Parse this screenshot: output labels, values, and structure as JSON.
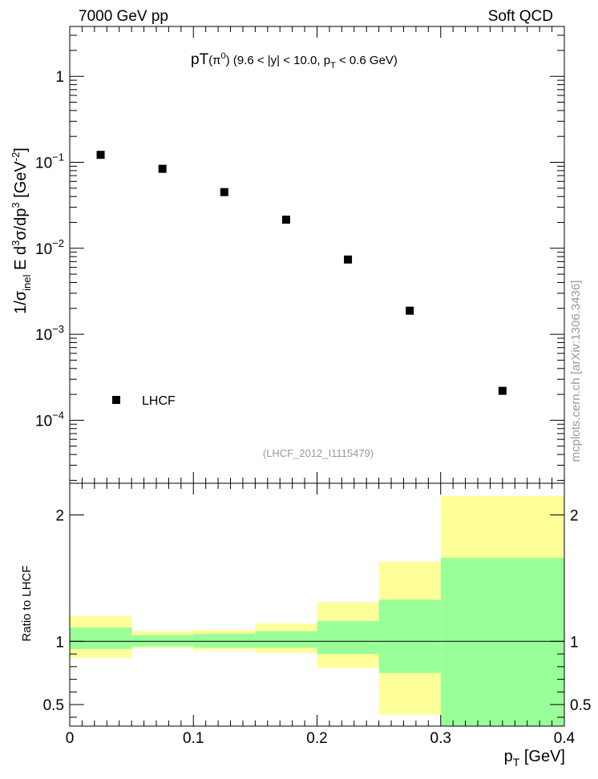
{
  "header": {
    "left": "7000 GeV pp",
    "right": "Soft QCD"
  },
  "plot_title": {
    "main": "pT",
    "particle": "(π",
    "particle_sup": "0",
    "particle_close": ")",
    "cuts_a": " (9.6 < |y| < 10.0, p",
    "cuts_sub": "T",
    "cuts_b": " < 0.6 GeV)"
  },
  "analysis_label": "(LHCF_2012_I1115479)",
  "side_label": "mcplots.cern.ch [arXiv:1306.3436]",
  "main_ylabel": {
    "a": "1/σ",
    "a_sub": "inel",
    "b": " E d",
    "b_sup": "3",
    "c": "σ/dp",
    "c_sup": "3",
    "d": " [GeV",
    "d_sup": "-2",
    "e": "]"
  },
  "ratio_ylabel": "Ratio to LHCF",
  "xlabel": {
    "main": "p",
    "sub": "T",
    "unit": " [GeV]"
  },
  "colors": {
    "marker": "#000000",
    "band_inner": "#99ff99",
    "band_outer": "#ffff99",
    "ref_line": "#000000",
    "grey_text": "#999999"
  },
  "chart_data": [
    {
      "type": "scatter",
      "panel": "main",
      "xlim": [
        0,
        0.4
      ],
      "ylim": [
        1.85e-05,
        3.8
      ],
      "yscale": "log",
      "y_ticks": [
        {
          "value": 1,
          "base": "1",
          "exp": ""
        },
        {
          "value": 0.1,
          "base": "10",
          "exp": "−1"
        },
        {
          "value": 0.01,
          "base": "10",
          "exp": "−2"
        },
        {
          "value": 0.001,
          "base": "10",
          "exp": "−3"
        },
        {
          "value": 0.0001,
          "base": "10",
          "exp": "−4"
        }
      ],
      "legend": {
        "position": "bottom-left",
        "entries": [
          "LHCF"
        ]
      },
      "series": [
        {
          "name": "LHCF",
          "marker": "square",
          "x": [
            0.025,
            0.075,
            0.125,
            0.175,
            0.225,
            0.275,
            0.35
          ],
          "y": [
            0.122,
            0.084,
            0.045,
            0.0215,
            0.0074,
            0.00188,
            0.00022
          ]
        }
      ]
    },
    {
      "type": "area",
      "panel": "ratio",
      "ylabel": "Ratio to LHCF",
      "xlim": [
        0,
        0.4
      ],
      "ylim": [
        0.33,
        2.25
      ],
      "y_ticks": [
        "0.5",
        "1",
        "2"
      ],
      "x_ticks": [
        "0",
        "0.1",
        "0.2",
        "0.3",
        "0.4"
      ],
      "reference_line": 1,
      "bins": [
        {
          "x_low": 0.0,
          "x_high": 0.05,
          "inner": [
            0.94,
            1.11
          ],
          "outer": [
            0.87,
            1.2
          ]
        },
        {
          "x_low": 0.05,
          "x_high": 0.1,
          "inner": [
            0.96,
            1.05
          ],
          "outer": [
            0.95,
            1.08
          ]
        },
        {
          "x_low": 0.1,
          "x_high": 0.15,
          "inner": [
            0.95,
            1.06
          ],
          "outer": [
            0.93,
            1.09
          ]
        },
        {
          "x_low": 0.15,
          "x_high": 0.2,
          "inner": [
            0.95,
            1.08
          ],
          "outer": [
            0.91,
            1.14
          ]
        },
        {
          "x_low": 0.2,
          "x_high": 0.25,
          "inner": [
            0.9,
            1.16
          ],
          "outer": [
            0.79,
            1.31
          ]
        },
        {
          "x_low": 0.25,
          "x_high": 0.3,
          "inner": [
            0.75,
            1.33
          ],
          "outer": [
            0.42,
            1.63
          ]
        },
        {
          "x_low": 0.3,
          "x_high": 0.4,
          "inner": [
            0.33,
            1.66
          ],
          "outer": [
            0.33,
            2.15
          ]
        }
      ]
    }
  ]
}
